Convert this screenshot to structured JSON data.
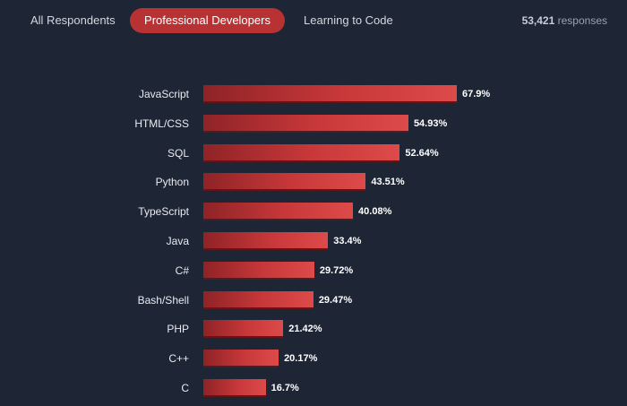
{
  "tabs": [
    {
      "label": "All Respondents"
    },
    {
      "label": "Professional Developers",
      "active": true
    },
    {
      "label": "Learning to Code"
    }
  ],
  "responses": {
    "count": "53,421",
    "label": "responses"
  },
  "colors": {
    "background": "#1e2535",
    "bar": "#c8383a",
    "active_tab": "#b83234"
  },
  "chart_data": {
    "type": "bar",
    "orientation": "horizontal",
    "title": "",
    "xlabel": "",
    "ylabel": "",
    "categories": [
      "JavaScript",
      "HTML/CSS",
      "SQL",
      "Python",
      "TypeScript",
      "Java",
      "C#",
      "Bash/Shell",
      "PHP",
      "C++",
      "C"
    ],
    "values": [
      67.9,
      54.93,
      52.64,
      43.51,
      40.08,
      33.4,
      29.72,
      29.47,
      21.42,
      20.17,
      16.7
    ],
    "labels": [
      "67.9%",
      "54.93%",
      "52.64%",
      "43.51%",
      "40.08%",
      "33.4%",
      "29.72%",
      "29.47%",
      "21.42%",
      "20.17%",
      "16.7%"
    ],
    "grid": false
  }
}
